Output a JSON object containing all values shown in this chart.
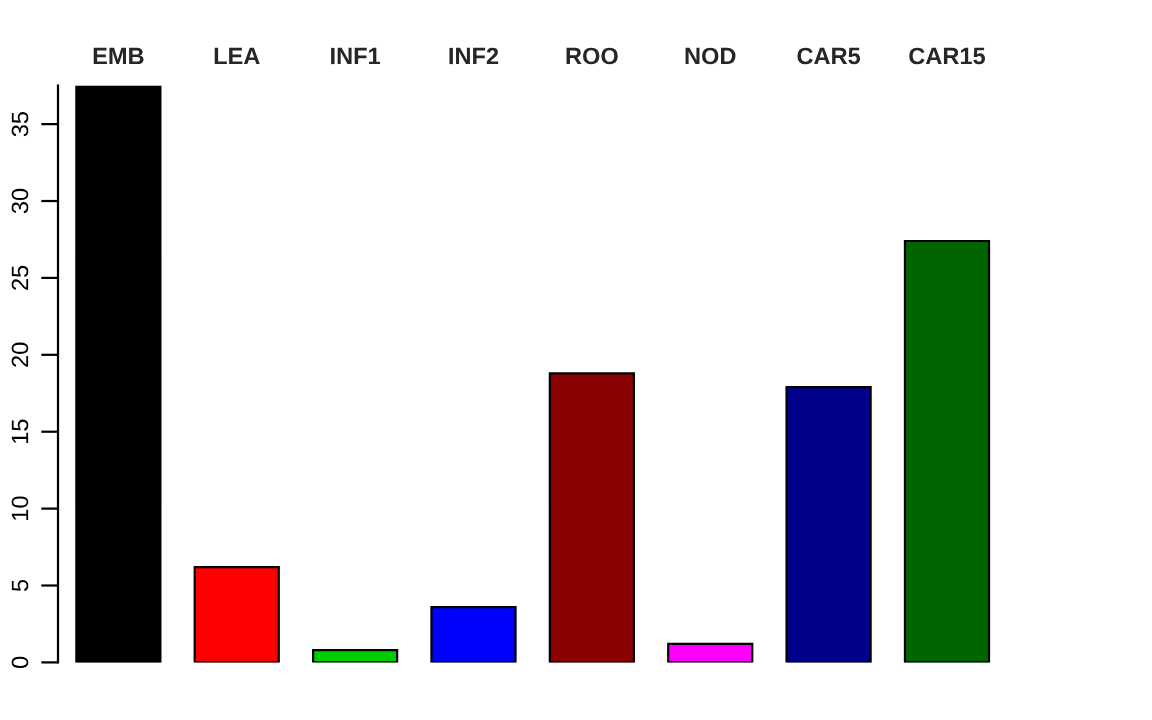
{
  "chart_data": {
    "type": "bar",
    "categories": [
      "EMB",
      "LEA",
      "INF1",
      "INF2",
      "ROO",
      "NOD",
      "CAR5",
      "CAR15"
    ],
    "values": [
      37.5,
      6.2,
      0.8,
      3.6,
      18.8,
      1.2,
      17.9,
      27.4
    ],
    "colors": [
      "#000000",
      "#ff0000",
      "#00cd00",
      "#0000ff",
      "#8b0000",
      "#ff00ff",
      "#00008b",
      "#006400"
    ],
    "ylim": [
      0,
      37.5
    ],
    "yticks": [
      0,
      5,
      10,
      15,
      20,
      25,
      30,
      35
    ],
    "grid": false,
    "legend": false
  }
}
